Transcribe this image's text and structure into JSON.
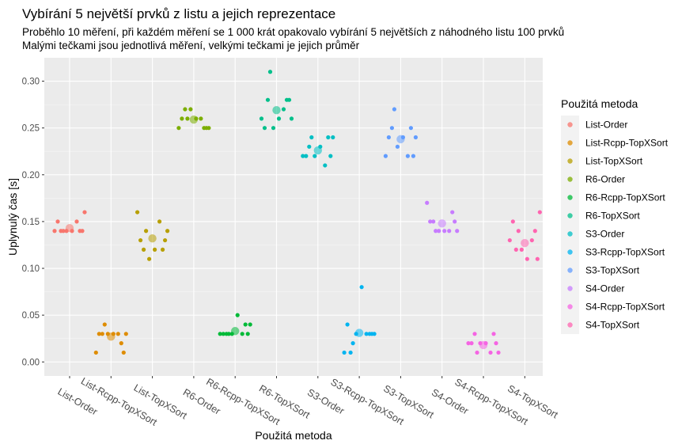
{
  "chart_data": {
    "type": "scatter",
    "title": "Vybírání 5 největší prvků z listu a jejich reprezentace",
    "subtitle": [
      "Proběhlo 10 měření, při každém měření se 1 000 krát opakovalo vybírání 5 největších z náhodného listu 100 prvků",
      "Malými tečkami jsou jednotlivá měření, velkými tečkami je jejich průměr"
    ],
    "xlabel": "Použitá metoda",
    "ylabel": "Uplynulý čas [s]",
    "ylim": [
      -0.015,
      0.325
    ],
    "yticks": [
      0.0,
      0.05,
      0.1,
      0.15,
      0.2,
      0.25,
      0.3
    ],
    "ytick_labels": [
      "0.00",
      "0.05",
      "0.10",
      "0.15",
      "0.20",
      "0.25",
      "0.30"
    ],
    "grid": true,
    "legend_title": "Použitá metoda",
    "legend_position": "right",
    "categories": [
      "List-Order",
      "List-Rcpp-TopXSort",
      "List-TopXSort",
      "R6-Order",
      "R6-Rcpp-TopXSort",
      "R6-TopXSort",
      "S3-Order",
      "S3-Rcpp-TopXSort",
      "S3-TopXSort",
      "S4-Order",
      "S4-Rcpp-TopXSort",
      "S4-TopXSort"
    ],
    "series": [
      {
        "name": "List-Order",
        "color": "#F8766D",
        "values": [
          0.14,
          0.14,
          0.14,
          0.14,
          0.15,
          0.15,
          0.16,
          0.14,
          0.14,
          0.14
        ],
        "mean": 0.143
      },
      {
        "name": "List-Rcpp-TopXSort",
        "color": "#DE8C00",
        "values": [
          0.01,
          0.03,
          0.01,
          0.03,
          0.03,
          0.03,
          0.03,
          0.03,
          0.04,
          0.02
        ],
        "mean": 0.027
      },
      {
        "name": "List-TopXSort",
        "color": "#B79F00",
        "values": [
          0.16,
          0.12,
          0.13,
          0.11,
          0.15,
          0.13,
          0.14,
          0.12,
          0.14,
          0.12
        ],
        "mean": 0.132
      },
      {
        "name": "R6-Order",
        "color": "#7CAE00",
        "values": [
          0.25,
          0.27,
          0.25,
          0.27,
          0.26,
          0.26,
          0.25,
          0.26,
          0.26,
          0.25
        ],
        "mean": 0.259
      },
      {
        "name": "R6-Rcpp-TopXSort",
        "color": "#00BA38",
        "values": [
          0.03,
          0.03,
          0.03,
          0.03,
          0.03,
          0.03,
          0.04,
          0.05,
          0.03,
          0.04
        ],
        "mean": 0.033
      },
      {
        "name": "R6-TopXSort",
        "color": "#00C08B",
        "values": [
          0.26,
          0.28,
          0.28,
          0.25,
          0.27,
          0.25,
          0.26,
          0.26,
          0.31,
          0.28
        ],
        "mean": 0.269
      },
      {
        "name": "S3-Order",
        "color": "#00BFC4",
        "values": [
          0.22,
          0.23,
          0.22,
          0.22,
          0.21,
          0.22,
          0.24,
          0.23,
          0.24,
          0.24
        ],
        "mean": 0.226
      },
      {
        "name": "S3-Rcpp-TopXSort",
        "color": "#00B4F0",
        "values": [
          0.01,
          0.01,
          0.03,
          0.03,
          0.03,
          0.04,
          0.03,
          0.08,
          0.02,
          0.03
        ],
        "mean": 0.031
      },
      {
        "name": "S3-TopXSort",
        "color": "#619CFF",
        "values": [
          0.22,
          0.25,
          0.22,
          0.23,
          0.22,
          0.24,
          0.24,
          0.24,
          0.27,
          0.25
        ],
        "mean": 0.238
      },
      {
        "name": "S4-Order",
        "color": "#C77CFF",
        "values": [
          0.17,
          0.15,
          0.15,
          0.14,
          0.14,
          0.15,
          0.14,
          0.14,
          0.14,
          0.16
        ],
        "mean": 0.148
      },
      {
        "name": "S4-Rcpp-TopXSort",
        "color": "#F564E3",
        "values": [
          0.02,
          0.03,
          0.02,
          0.02,
          0.01,
          0.02,
          0.01,
          0.02,
          0.01,
          0.03
        ],
        "mean": 0.018
      },
      {
        "name": "S4-TopXSort",
        "color": "#FF64B0",
        "values": [
          0.13,
          0.12,
          0.11,
          0.12,
          0.13,
          0.15,
          0.16,
          0.11,
          0.14,
          0.14
        ],
        "mean": 0.127
      }
    ]
  }
}
